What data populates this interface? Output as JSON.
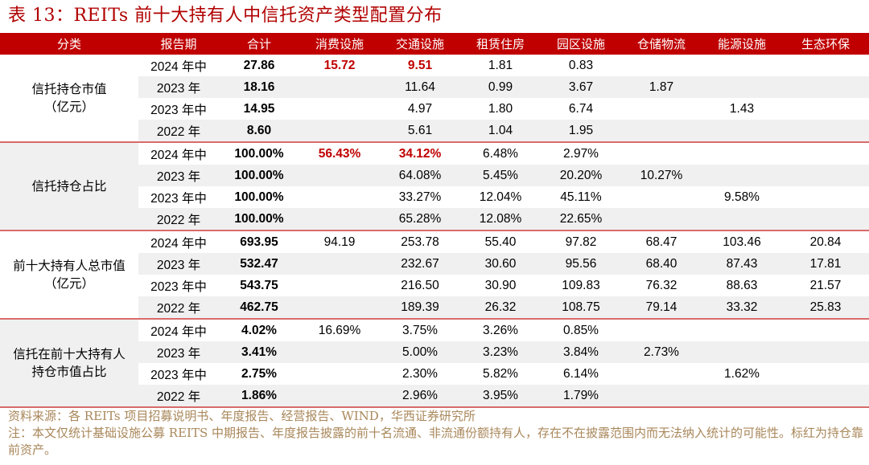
{
  "title": "表 13：REITs 前十大持有人中信托资产类型配置分布",
  "headers": [
    "分类",
    "报告期",
    "合计",
    "消费设施",
    "交通设施",
    "租赁住房",
    "园区设施",
    "仓储物流",
    "能源设施",
    "生态环保"
  ],
  "groups": [
    {
      "category_line1": "信托持仓市值",
      "category_line2": "（亿元）",
      "rows": [
        {
          "period": "2024 年中",
          "total": "27.86",
          "consumer": "15.72",
          "transport": "9.51",
          "rental": "1.81",
          "park": "0.83",
          "logistics": "",
          "energy": "",
          "eco": ""
        },
        {
          "period": "2023 年",
          "total": "18.16",
          "consumer": "",
          "transport": "11.64",
          "rental": "0.99",
          "park": "3.67",
          "logistics": "1.87",
          "energy": "",
          "eco": ""
        },
        {
          "period": "2023 年中",
          "total": "14.95",
          "consumer": "",
          "transport": "4.97",
          "rental": "1.80",
          "park": "6.74",
          "logistics": "",
          "energy": "1.43",
          "eco": ""
        },
        {
          "period": "2022 年",
          "total": "8.60",
          "consumer": "",
          "transport": "5.61",
          "rental": "1.04",
          "park": "1.95",
          "logistics": "",
          "energy": "",
          "eco": ""
        }
      ]
    },
    {
      "category_line1": "信托持仓占比",
      "category_line2": "",
      "rows": [
        {
          "period": "2024 年中",
          "total": "100.00%",
          "consumer": "56.43%",
          "transport": "34.12%",
          "rental": "6.48%",
          "park": "2.97%",
          "logistics": "",
          "energy": "",
          "eco": ""
        },
        {
          "period": "2023 年",
          "total": "100.00%",
          "consumer": "",
          "transport": "64.08%",
          "rental": "5.45%",
          "park": "20.20%",
          "logistics": "10.27%",
          "energy": "",
          "eco": ""
        },
        {
          "period": "2023 年中",
          "total": "100.00%",
          "consumer": "",
          "transport": "33.27%",
          "rental": "12.04%",
          "park": "45.11%",
          "logistics": "",
          "energy": "9.58%",
          "eco": ""
        },
        {
          "period": "2022 年",
          "total": "100.00%",
          "consumer": "",
          "transport": "65.28%",
          "rental": "12.08%",
          "park": "22.65%",
          "logistics": "",
          "energy": "",
          "eco": ""
        }
      ]
    },
    {
      "category_line1": "前十大持有人总市值",
      "category_line2": "（亿元）",
      "rows": [
        {
          "period": "2024 年中",
          "total": "693.95",
          "consumer": "94.19",
          "transport": "253.78",
          "rental": "55.40",
          "park": "97.82",
          "logistics": "68.47",
          "energy": "103.46",
          "eco": "20.84"
        },
        {
          "period": "2023 年",
          "total": "532.47",
          "consumer": "",
          "transport": "232.67",
          "rental": "30.60",
          "park": "95.56",
          "logistics": "68.40",
          "energy": "87.43",
          "eco": "17.81"
        },
        {
          "period": "2023 年中",
          "total": "543.75",
          "consumer": "",
          "transport": "216.50",
          "rental": "30.90",
          "park": "109.83",
          "logistics": "76.32",
          "energy": "88.63",
          "eco": "21.57"
        },
        {
          "period": "2022 年",
          "total": "462.75",
          "consumer": "",
          "transport": "189.39",
          "rental": "26.32",
          "park": "108.75",
          "logistics": "79.14",
          "energy": "33.32",
          "eco": "25.83"
        }
      ]
    },
    {
      "category_line1": "信托在前十大持有人",
      "category_line2": "持仓市值占比",
      "rows": [
        {
          "period": "2024 年中",
          "total": "4.02%",
          "consumer": "16.69%",
          "transport": "3.75%",
          "rental": "3.26%",
          "park": "0.85%",
          "logistics": "",
          "energy": "",
          "eco": ""
        },
        {
          "period": "2023 年",
          "total": "3.41%",
          "consumer": "",
          "transport": "5.00%",
          "rental": "3.23%",
          "park": "3.84%",
          "logistics": "2.73%",
          "energy": "",
          "eco": ""
        },
        {
          "period": "2023 年中",
          "total": "2.75%",
          "consumer": "",
          "transport": "2.30%",
          "rental": "5.82%",
          "park": "6.14%",
          "logistics": "",
          "energy": "1.62%",
          "eco": ""
        },
        {
          "period": "2022 年",
          "total": "1.86%",
          "consumer": "",
          "transport": "2.96%",
          "rental": "3.95%",
          "park": "1.79%",
          "logistics": "",
          "energy": "",
          "eco": ""
        }
      ]
    }
  ],
  "highlight_color": "#c00000",
  "header_bg": "#c00000",
  "footer": {
    "source": "资料来源：各 REITs 项目招募说明书、年度报告、经营报告、WIND，华西证券研究所",
    "note": "注：本文仅统计基础设施公募 REITS 中期报告、年度报告披露的前十名流通、非流通份额持有人，存在不在披露范围内而无法纳入统计的可能性。标红为持仓靠前资产。"
  }
}
